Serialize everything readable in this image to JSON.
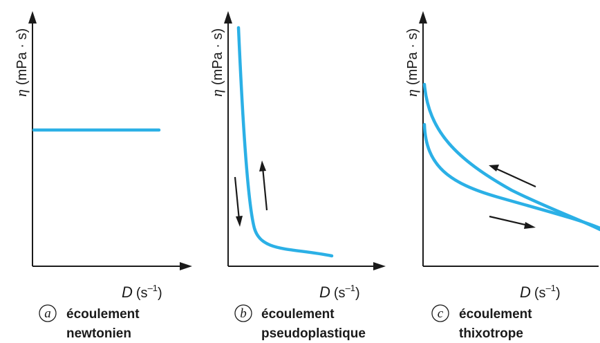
{
  "panels": [
    {
      "letter": "a",
      "y_axis_label": {
        "symbol": "η",
        "unit": "(mPa · s)"
      },
      "x_axis_label": {
        "symbol": "D",
        "unit_open": "(s",
        "unit_exp": "–1",
        "unit_close": ")"
      },
      "caption": [
        "écoulement",
        "newtonien"
      ]
    },
    {
      "letter": "b",
      "y_axis_label": {
        "symbol": "η",
        "unit": "(mPa · s)"
      },
      "x_axis_label": {
        "symbol": "D",
        "unit_open": "(s",
        "unit_exp": "–1",
        "unit_close": ")"
      },
      "caption": [
        "écoulement",
        "pseudoplastique"
      ]
    },
    {
      "letter": "c",
      "y_axis_label": {
        "symbol": "η",
        "unit": "(mPa · s)"
      },
      "x_axis_label": {
        "symbol": "D",
        "unit_open": "(s",
        "unit_exp": "–1",
        "unit_close": ")"
      },
      "caption": [
        "écoulement",
        "thixotrope"
      ]
    }
  ],
  "colors": {
    "curve": "#2bb0e6",
    "axis": "#1a1a1a"
  }
}
